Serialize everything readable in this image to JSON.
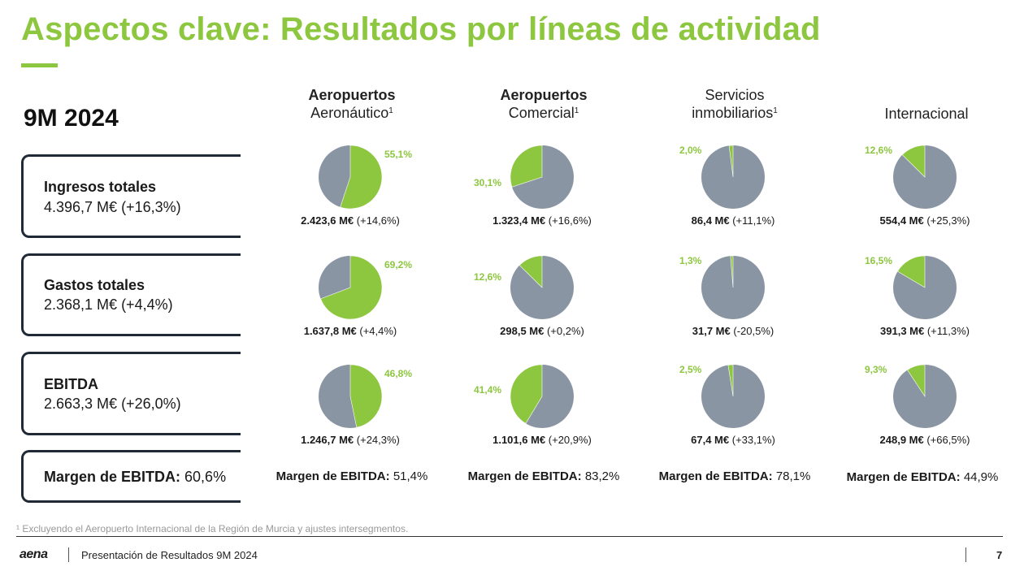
{
  "title": "Aspectos clave: Resultados por líneas de actividad",
  "period": "9M 2024",
  "colors": {
    "accent": "#8dc63f",
    "grey": "#8a95a3",
    "dark": "#1f2a36"
  },
  "kpis": [
    {
      "label": "Ingresos totales",
      "value": "4.396,7 M€ (+16,3%)"
    },
    {
      "label": "Gastos totales",
      "value": "2.368,1 M€ (+4,4%)"
    },
    {
      "label": "EBITDA",
      "value": "2.663,3 M€ (+26,0%)"
    }
  ],
  "margin_total": {
    "label": "Margen de EBITDA:",
    "value": "60,6%"
  },
  "columns": [
    {
      "line1": "Aeropuertos",
      "line2": "Aeronáutico",
      "sup": "1",
      "line1_bold": true
    },
    {
      "line1": "Aeropuertos",
      "line2": "Comercial",
      "sup": "1",
      "line1_bold": true
    },
    {
      "line1": "Servicios",
      "line2": "inmobiliarios",
      "sup": "1",
      "line1_bold": false
    },
    {
      "line1": "",
      "line2": "Internacional",
      "sup": "",
      "line1_bold": false
    }
  ],
  "chart_data": [
    {
      "type": "pie",
      "metric": "Ingresos totales",
      "segment": "Aeropuertos Aeronáutico",
      "share_pct": 55.1,
      "share_label": "55,1%",
      "amount": "2.423,6 M€",
      "change": "(+14,6%)"
    },
    {
      "type": "pie",
      "metric": "Ingresos totales",
      "segment": "Aeropuertos Comercial",
      "share_pct": 30.1,
      "share_label": "30,1%",
      "amount": "1.323,4 M€",
      "change": "(+16,6%)"
    },
    {
      "type": "pie",
      "metric": "Ingresos totales",
      "segment": "Servicios inmobiliarios",
      "share_pct": 2.0,
      "share_label": "2,0%",
      "amount": "86,4 M€",
      "change": "(+11,1%)"
    },
    {
      "type": "pie",
      "metric": "Ingresos totales",
      "segment": "Internacional",
      "share_pct": 12.6,
      "share_label": "12,6%",
      "amount": "554,4 M€",
      "change": "(+25,3%)"
    },
    {
      "type": "pie",
      "metric": "Gastos totales",
      "segment": "Aeropuertos Aeronáutico",
      "share_pct": 69.2,
      "share_label": "69,2%",
      "amount": "1.637,8 M€",
      "change": "(+4,4%)"
    },
    {
      "type": "pie",
      "metric": "Gastos totales",
      "segment": "Aeropuertos Comercial",
      "share_pct": 12.6,
      "share_label": "12,6%",
      "amount": "298,5 M€",
      "change": "(+0,2%)"
    },
    {
      "type": "pie",
      "metric": "Gastos totales",
      "segment": "Servicios inmobiliarios",
      "share_pct": 1.3,
      "share_label": "1,3%",
      "amount": "31,7 M€",
      "change": "(-20,5%)"
    },
    {
      "type": "pie",
      "metric": "Gastos totales",
      "segment": "Internacional",
      "share_pct": 16.5,
      "share_label": "16,5%",
      "amount": "391,3 M€",
      "change": "(+11,3%)"
    },
    {
      "type": "pie",
      "metric": "EBITDA",
      "segment": "Aeropuertos Aeronáutico",
      "share_pct": 46.8,
      "share_label": "46,8%",
      "amount": "1.246,7 M€",
      "change": "(+24,3%)"
    },
    {
      "type": "pie",
      "metric": "EBITDA",
      "segment": "Aeropuertos Comercial",
      "share_pct": 41.4,
      "share_label": "41,4%",
      "amount": "1.101,6 M€",
      "change": "(+20,9%)"
    },
    {
      "type": "pie",
      "metric": "EBITDA",
      "segment": "Servicios inmobiliarios",
      "share_pct": 2.5,
      "share_label": "2,5%",
      "amount": "67,4 M€",
      "change": "(+33,1%)"
    },
    {
      "type": "pie",
      "metric": "EBITDA",
      "segment": "Internacional",
      "share_pct": 9.3,
      "share_label": "9,3%",
      "amount": "248,9 M€",
      "change": "(+66,5%)"
    }
  ],
  "margins": [
    {
      "label": "Margen de EBITDA:",
      "value": "51,4%"
    },
    {
      "label": "Margen de EBITDA:",
      "value": "83,2%"
    },
    {
      "label": "Margen de EBITDA:",
      "value": "78,1%"
    },
    {
      "label": "Margen de EBITDA:",
      "value": "44,9%"
    }
  ],
  "footnote": "¹ Excluyendo el Aeropuerto Internacional de la Región de Murcia y ajustes intersegmentos.",
  "footer": {
    "logo": "aena",
    "text": "Presentación de Resultados 9M 2024",
    "page": "7"
  }
}
